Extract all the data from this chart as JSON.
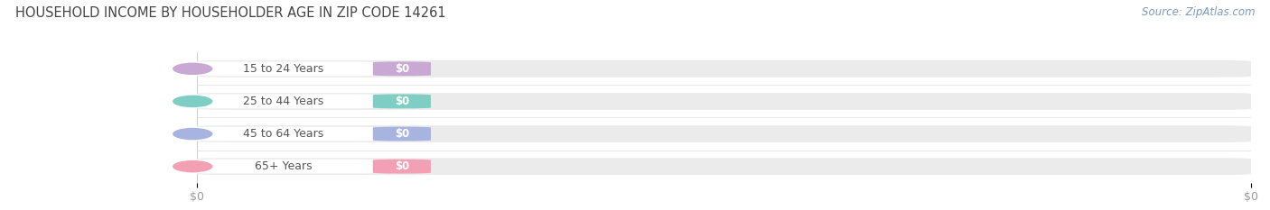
{
  "title": "HOUSEHOLD INCOME BY HOUSEHOLDER AGE IN ZIP CODE 14261",
  "source_text": "Source: ZipAtlas.com",
  "categories": [
    "15 to 24 Years",
    "25 to 44 Years",
    "45 to 64 Years",
    "65+ Years"
  ],
  "values": [
    0,
    0,
    0,
    0
  ],
  "bar_colors": [
    "#c9a8d4",
    "#7ecec4",
    "#a8b4e0",
    "#f4a0b4"
  ],
  "track_color": "#ebebeb",
  "label_bg_color": "#ffffff",
  "label_text_color": "#555555",
  "val_label_color": "#ffffff",
  "title_color": "#444444",
  "source_color": "#7a9abf",
  "tick_color": "#999999",
  "background_color": "#ffffff",
  "figsize": [
    14.06,
    2.33
  ],
  "dpi": 100
}
